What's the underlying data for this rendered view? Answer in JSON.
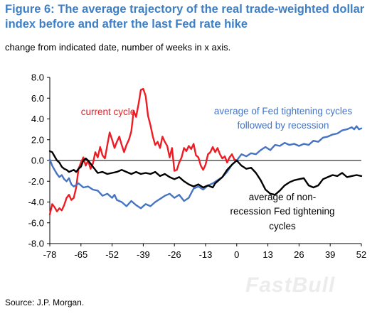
{
  "title": "Figure 6: The average trajectory of the real trade-weighted dollar index before and after the last Fed rate hike",
  "subtitle": "change from indicated date, number of weeks in x axis.",
  "source": "Source: J.P. Morgan.",
  "watermark": "FastBull",
  "chart_data": {
    "type": "line",
    "x_ticks": [
      -78,
      -65,
      -52,
      -39,
      -26,
      -13,
      0,
      13,
      26,
      39,
      52
    ],
    "y_ticks": [
      8.0,
      6.0,
      4.0,
      2.0,
      0.0,
      -2.0,
      -4.0,
      -6.0,
      -8.0
    ],
    "y_tick_labels": [
      "8.0",
      "6.0",
      "4.0",
      "2.0",
      "0.0",
      "-2.0",
      "-4.0",
      "-6.0",
      "-8.0"
    ],
    "x_tick_labels": [
      "-78",
      "-65",
      "-52",
      "-39",
      "-26",
      "-13",
      "0",
      "13",
      "26",
      "39",
      "52"
    ],
    "xlim": [
      -78,
      52
    ],
    "ylim": [
      -8,
      8
    ],
    "grid": false,
    "zero_line": true,
    "series": [
      {
        "name": "current cycle",
        "color": "#ee1c25",
        "points": [
          [
            -78,
            -5.2
          ],
          [
            -77,
            -4.2
          ],
          [
            -76,
            -4.5
          ],
          [
            -75,
            -4.9
          ],
          [
            -74,
            -4.6
          ],
          [
            -73,
            -4.8
          ],
          [
            -72,
            -4.3
          ],
          [
            -71,
            -3.6
          ],
          [
            -70,
            -3.3
          ],
          [
            -69,
            -3.8
          ],
          [
            -68,
            -3.6
          ],
          [
            -67,
            -2.6
          ],
          [
            -66,
            -0.8
          ],
          [
            -65,
            -0.2
          ],
          [
            -64,
            0.3
          ],
          [
            -63,
            -0.5
          ],
          [
            -62,
            0.0
          ],
          [
            -61,
            -0.8
          ],
          [
            -60,
            -0.3
          ],
          [
            -59,
            0.8
          ],
          [
            -58,
            0.3
          ],
          [
            -57,
            1.3
          ],
          [
            -56,
            0.5
          ],
          [
            -55,
            0.2
          ],
          [
            -54,
            1.5
          ],
          [
            -53,
            2.7
          ],
          [
            -52,
            2.0
          ],
          [
            -51,
            1.2
          ],
          [
            -50,
            1.8
          ],
          [
            -49,
            2.3
          ],
          [
            -48,
            1.5
          ],
          [
            -47,
            0.8
          ],
          [
            -46,
            1.5
          ],
          [
            -45,
            2.0
          ],
          [
            -44,
            2.8
          ],
          [
            -43,
            4.8
          ],
          [
            -42,
            4.2
          ],
          [
            -41,
            5.4
          ],
          [
            -40,
            6.8
          ],
          [
            -39,
            6.9
          ],
          [
            -38,
            6.2
          ],
          [
            -37,
            4.3
          ],
          [
            -36,
            3.4
          ],
          [
            -35,
            2.3
          ],
          [
            -34,
            1.5
          ],
          [
            -33,
            1.8
          ],
          [
            -32,
            1.2
          ],
          [
            -31,
            2.3
          ],
          [
            -30,
            1.8
          ],
          [
            -29,
            1.4
          ],
          [
            -28,
            0.3
          ],
          [
            -27,
            1.2
          ],
          [
            -26,
            -1.0
          ],
          [
            -25,
            -0.9
          ],
          [
            -24,
            -0.2
          ],
          [
            -23,
            0.3
          ],
          [
            -22,
            1.2
          ],
          [
            -21,
            0.9
          ],
          [
            -20,
            1.4
          ],
          [
            -19,
            1.1
          ],
          [
            -18,
            1.6
          ],
          [
            -17,
            0.5
          ],
          [
            -16,
            0.3
          ],
          [
            -15,
            -0.5
          ],
          [
            -14,
            -0.9
          ],
          [
            -13,
            -0.4
          ],
          [
            -12,
            0.6
          ],
          [
            -11,
            0.8
          ],
          [
            -10,
            1.3
          ],
          [
            -9,
            0.8
          ],
          [
            -8,
            1.2
          ],
          [
            -7,
            0.6
          ],
          [
            -6,
            0.2
          ],
          [
            -5,
            0.4
          ],
          [
            -4,
            -0.2
          ],
          [
            -3,
            0.3
          ],
          [
            -2,
            0.6
          ],
          [
            -1,
            0.1
          ],
          [
            0,
            0.0
          ]
        ]
      },
      {
        "name": "average of Fed tightening cycles followed by recession",
        "color": "#4674c2",
        "points": [
          [
            -78,
            0.1
          ],
          [
            -77,
            -0.5
          ],
          [
            -76,
            -0.9
          ],
          [
            -75,
            -1.3
          ],
          [
            -74,
            -1.6
          ],
          [
            -73,
            -1.4
          ],
          [
            -72,
            -1.8
          ],
          [
            -71,
            -2.0
          ],
          [
            -70,
            -1.7
          ],
          [
            -69,
            -2.3
          ],
          [
            -68,
            -2.5
          ],
          [
            -66,
            -2.2
          ],
          [
            -64,
            -2.6
          ],
          [
            -62,
            -2.5
          ],
          [
            -60,
            -2.8
          ],
          [
            -58,
            -2.9
          ],
          [
            -56,
            -3.4
          ],
          [
            -54,
            -3.2
          ],
          [
            -52,
            -3.6
          ],
          [
            -51,
            -3.3
          ],
          [
            -50,
            -3.8
          ],
          [
            -48,
            -4.0
          ],
          [
            -46,
            -4.4
          ],
          [
            -44,
            -3.9
          ],
          [
            -42,
            -4.3
          ],
          [
            -40,
            -4.6
          ],
          [
            -38,
            -4.2
          ],
          [
            -36,
            -4.4
          ],
          [
            -34,
            -4.0
          ],
          [
            -32,
            -3.7
          ],
          [
            -30,
            -3.4
          ],
          [
            -28,
            -3.2
          ],
          [
            -26,
            -3.6
          ],
          [
            -24,
            -3.3
          ],
          [
            -22,
            -3.9
          ],
          [
            -20,
            -3.6
          ],
          [
            -18,
            -2.7
          ],
          [
            -16,
            -2.5
          ],
          [
            -14,
            -2.8
          ],
          [
            -12,
            -2.4
          ],
          [
            -10,
            -2.2
          ],
          [
            -8,
            -1.9
          ],
          [
            -6,
            -1.6
          ],
          [
            -4,
            -1.1
          ],
          [
            -2,
            -0.4
          ],
          [
            0,
            0.0
          ],
          [
            2,
            0.6
          ],
          [
            4,
            0.4
          ],
          [
            6,
            0.7
          ],
          [
            8,
            0.6
          ],
          [
            10,
            1.0
          ],
          [
            12,
            1.3
          ],
          [
            14,
            1.0
          ],
          [
            16,
            1.5
          ],
          [
            18,
            1.4
          ],
          [
            20,
            1.7
          ],
          [
            22,
            1.5
          ],
          [
            24,
            1.6
          ],
          [
            26,
            1.4
          ],
          [
            28,
            1.6
          ],
          [
            30,
            1.5
          ],
          [
            32,
            1.9
          ],
          [
            34,
            1.8
          ],
          [
            36,
            2.2
          ],
          [
            38,
            2.3
          ],
          [
            40,
            2.5
          ],
          [
            42,
            2.6
          ],
          [
            44,
            2.9
          ],
          [
            46,
            3.0
          ],
          [
            48,
            3.2
          ],
          [
            49,
            3.0
          ],
          [
            50,
            3.3
          ],
          [
            51,
            3.0
          ],
          [
            52,
            3.1
          ]
        ]
      },
      {
        "name": "average of non-recession Fed tightening cycles",
        "color": "#000000",
        "points": [
          [
            -78,
            0.9
          ],
          [
            -77,
            0.8
          ],
          [
            -76,
            0.4
          ],
          [
            -75,
            0.0
          ],
          [
            -74,
            -0.2
          ],
          [
            -73,
            -0.6
          ],
          [
            -72,
            -0.8
          ],
          [
            -71,
            -0.9
          ],
          [
            -70,
            -1.1
          ],
          [
            -68,
            -0.9
          ],
          [
            -67,
            -1.1
          ],
          [
            -66,
            -0.8
          ],
          [
            -65,
            -0.6
          ],
          [
            -64,
            0.0
          ],
          [
            -63,
            0.2
          ],
          [
            -62,
            0.0
          ],
          [
            -61,
            -0.3
          ],
          [
            -60,
            -0.6
          ],
          [
            -59,
            -0.9
          ],
          [
            -58,
            -1.2
          ],
          [
            -56,
            -1.1
          ],
          [
            -54,
            -1.3
          ],
          [
            -52,
            -1.2
          ],
          [
            -50,
            -1.1
          ],
          [
            -48,
            -0.9
          ],
          [
            -46,
            -1.1
          ],
          [
            -44,
            -1.3
          ],
          [
            -42,
            -1.1
          ],
          [
            -40,
            -1.3
          ],
          [
            -38,
            -1.2
          ],
          [
            -36,
            -1.3
          ],
          [
            -34,
            -1.1
          ],
          [
            -32,
            -1.5
          ],
          [
            -30,
            -1.3
          ],
          [
            -28,
            -1.6
          ],
          [
            -26,
            -1.8
          ],
          [
            -24,
            -1.6
          ],
          [
            -22,
            -2.0
          ],
          [
            -20,
            -2.3
          ],
          [
            -18,
            -2.5
          ],
          [
            -16,
            -2.3
          ],
          [
            -14,
            -2.6
          ],
          [
            -12,
            -2.4
          ],
          [
            -10,
            -2.6
          ],
          [
            -9,
            -2.2
          ],
          [
            -8,
            -2.0
          ],
          [
            -6,
            -1.6
          ],
          [
            -4,
            -0.9
          ],
          [
            -2,
            -0.4
          ],
          [
            0,
            0.0
          ],
          [
            2,
            -0.5
          ],
          [
            4,
            -0.8
          ],
          [
            6,
            -0.7
          ],
          [
            8,
            -1.2
          ],
          [
            10,
            -1.9
          ],
          [
            12,
            -2.8
          ],
          [
            14,
            -3.2
          ],
          [
            16,
            -3.3
          ],
          [
            18,
            -2.9
          ],
          [
            20,
            -2.4
          ],
          [
            22,
            -2.1
          ],
          [
            24,
            -1.9
          ],
          [
            26,
            -1.8
          ],
          [
            28,
            -1.7
          ],
          [
            30,
            -2.4
          ],
          [
            32,
            -2.6
          ],
          [
            34,
            -2.4
          ],
          [
            36,
            -1.8
          ],
          [
            38,
            -1.6
          ],
          [
            40,
            -1.4
          ],
          [
            42,
            -1.5
          ],
          [
            44,
            -1.2
          ],
          [
            46,
            -1.6
          ],
          [
            48,
            -1.5
          ],
          [
            50,
            -1.4
          ],
          [
            52,
            -1.5
          ]
        ]
      }
    ],
    "annotations": [
      {
        "text": "current cycle",
        "color": "#ee1c25"
      },
      {
        "text": "average of Fed tightening cycles",
        "color": "#4674c2"
      },
      {
        "text": "followed by recession",
        "color": "#4674c2"
      },
      {
        "text": "average of non-",
        "color": "#000000"
      },
      {
        "text": "recession Fed tightening",
        "color": "#000000"
      },
      {
        "text": "cycles",
        "color": "#000000"
      }
    ]
  }
}
